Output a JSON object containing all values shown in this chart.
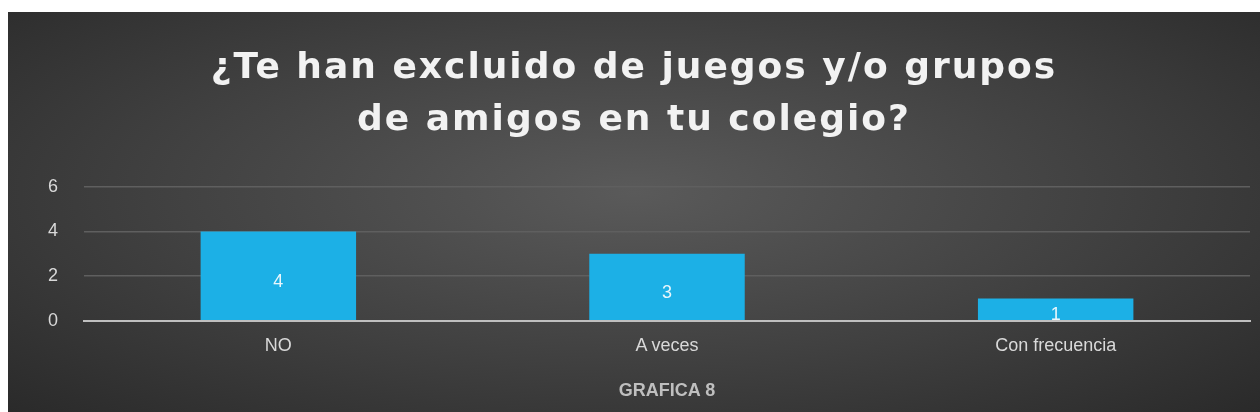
{
  "chart_data": {
    "type": "bar",
    "title": "¿Te han excluido de juegos y/o grupos de amigos en tu colegio?",
    "xlabel": "GRAFICA 8",
    "categories": [
      "NO",
      "A veces",
      "Con frecuencia"
    ],
    "values": [
      4,
      3,
      1
    ],
    "color": "#1cb0e6",
    "ylim": [
      0,
      6
    ],
    "yticks": [
      0,
      2,
      4,
      6
    ],
    "grid": "y",
    "data_labels": true,
    "legend": false
  }
}
